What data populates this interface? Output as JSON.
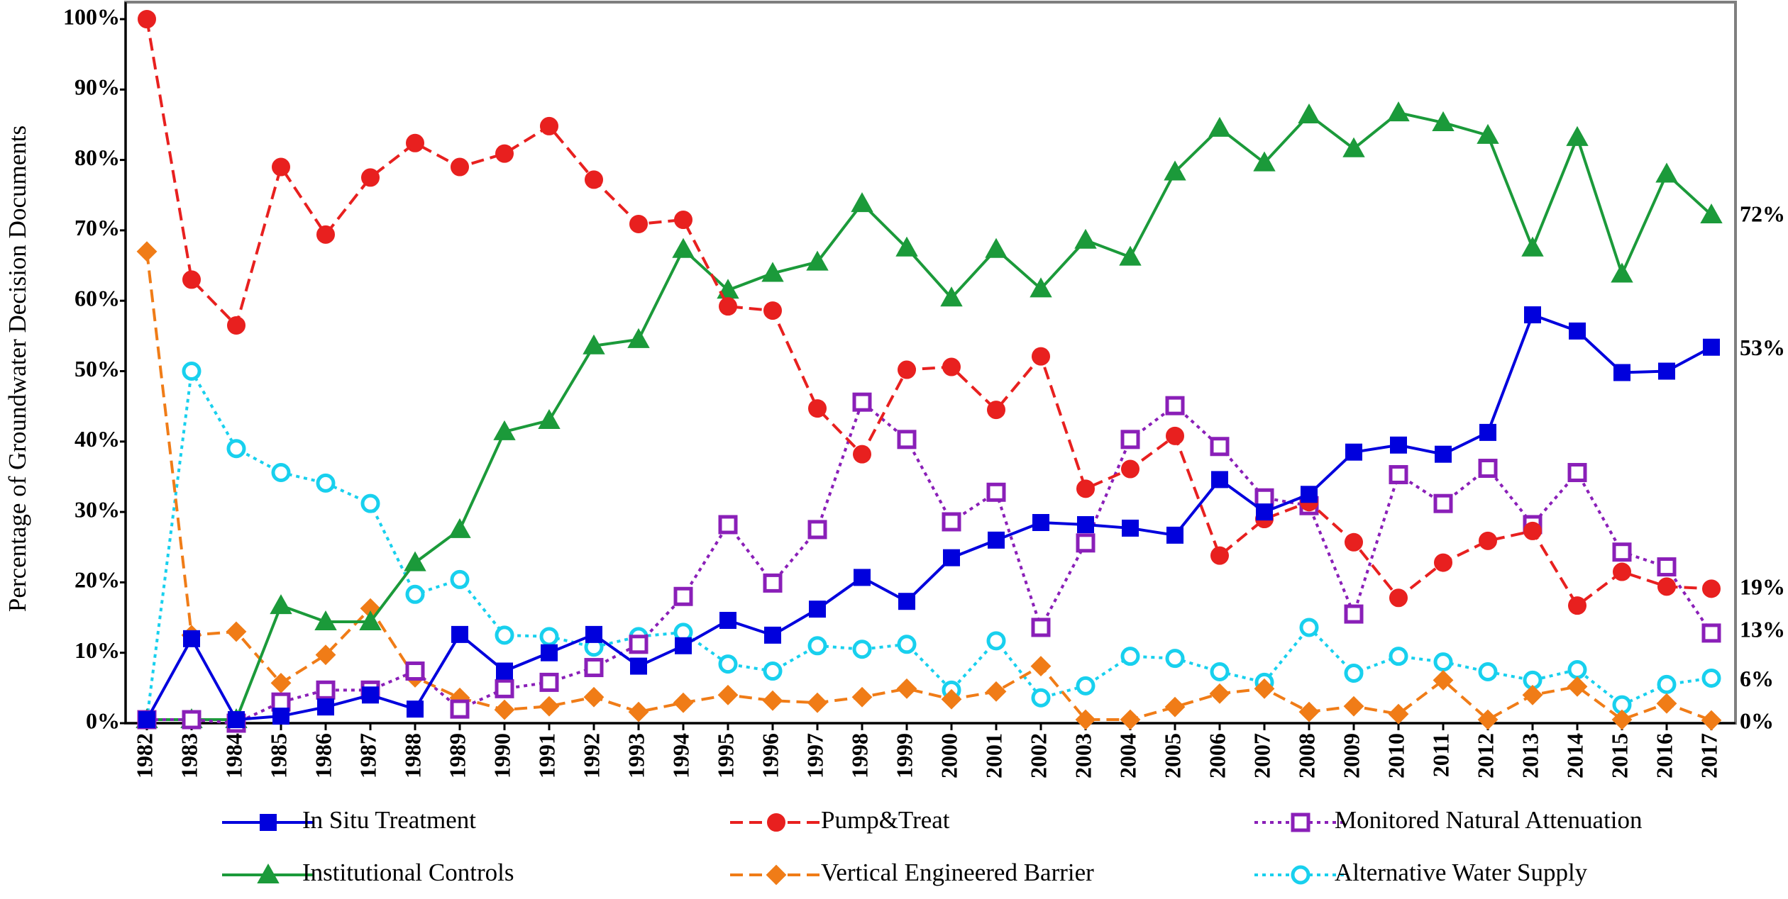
{
  "chart_data": {
    "type": "line",
    "y_label": "Percentage of Groundwater Decision Documents",
    "categories": [
      "1982",
      "1983",
      "1984",
      "1985",
      "1986",
      "1987",
      "1988",
      "1989",
      "1990",
      "1991",
      "1992",
      "1993",
      "1994",
      "1995",
      "1996",
      "1997",
      "1998",
      "1999",
      "2000",
      "2001",
      "2002",
      "2003",
      "2004",
      "2005",
      "2006",
      "2007",
      "2008",
      "2009",
      "2010",
      "2011",
      "2012",
      "2013",
      "2014",
      "2015",
      "2016",
      "2017"
    ],
    "ylim": [
      0,
      100
    ],
    "yticks": [
      {
        "value": 0,
        "label": "0%"
      },
      {
        "value": 10,
        "label": "10%"
      },
      {
        "value": 20,
        "label": "20%"
      },
      {
        "value": 30,
        "label": "30%"
      },
      {
        "value": 40,
        "label": "40%"
      },
      {
        "value": 50,
        "label": "50%"
      },
      {
        "value": 60,
        "label": "60%"
      },
      {
        "value": 70,
        "label": "70%"
      },
      {
        "value": 80,
        "label": "80%"
      },
      {
        "value": 90,
        "label": "90%"
      },
      {
        "value": 100,
        "label": "100%"
      }
    ],
    "grid": false,
    "end_labels": [
      {
        "value": 72,
        "label": "72%"
      },
      {
        "value": 53,
        "label": "53%"
      },
      {
        "value": 19,
        "label": "19%"
      },
      {
        "value": 13,
        "label": "13%"
      },
      {
        "value": 6,
        "label": "6%"
      },
      {
        "value": 0,
        "label": "0%"
      }
    ],
    "series": [
      {
        "name": "In Situ Treatment",
        "color": "#0000dd",
        "marker": "square",
        "filled": true,
        "line_style": "solid",
        "values": [
          0.5,
          12,
          0.5,
          1,
          2.3,
          4,
          2,
          12.6,
          7.4,
          10,
          12.6,
          8.1,
          11,
          14.6,
          12.5,
          16.2,
          20.7,
          17.3,
          23.5,
          26,
          28.5,
          28.2,
          27.7,
          26.7,
          34.6,
          30,
          32.5,
          38.5,
          39.5,
          38.2,
          41.3,
          58,
          55.7,
          49.8,
          50,
          53.4
        ]
      },
      {
        "name": "Pump&Treat",
        "color": "#e8201f",
        "marker": "circle",
        "filled": true,
        "line_style": "dashed",
        "values": [
          100,
          63,
          56.5,
          79,
          69.4,
          77.5,
          82.4,
          79,
          80.9,
          84.8,
          77.2,
          70.9,
          71.5,
          59.2,
          58.6,
          44.7,
          38.2,
          50.2,
          50.6,
          44.5,
          52.1,
          33.3,
          36.1,
          40.8,
          23.8,
          29,
          31.4,
          25.7,
          17.8,
          22.8,
          25.9,
          27.3,
          16.7,
          21.5,
          19.4,
          19.1
        ]
      },
      {
        "name": "Monitored Natural Attenuation",
        "color": "#8a1fb8",
        "marker": "square",
        "filled": false,
        "line_style": "dotted",
        "values": [
          0.5,
          0.5,
          0,
          3,
          4.7,
          4.7,
          7.4,
          2,
          4.9,
          5.8,
          7.9,
          11.2,
          18,
          28.2,
          19.9,
          27.5,
          45.6,
          40.3,
          28.6,
          32.8,
          13.6,
          25.6,
          40.3,
          45.1,
          39.3,
          32,
          30.9,
          15.5,
          35.3,
          31.2,
          36.2,
          28.2,
          35.6,
          24.3,
          22.2,
          12.8
        ]
      },
      {
        "name": "Institutional Controls",
        "color": "#1b9a3a",
        "marker": "triangle",
        "filled": true,
        "line_style": "solid",
        "values": [
          0.5,
          0.5,
          0.5,
          16.7,
          14.4,
          14.4,
          22.8,
          27.5,
          41.4,
          43,
          53.6,
          54.5,
          67.3,
          61.5,
          63.9,
          65.5,
          73.8,
          67.5,
          60.4,
          67.3,
          61.7,
          68.6,
          66.2,
          78.3,
          84.5,
          79.6,
          86.4,
          81.6,
          86.7,
          85.3,
          83.5,
          67.5,
          83.2,
          63.8,
          78,
          72.2
        ]
      },
      {
        "name": "Vertical Engineered Barrier",
        "color": "#f07c17",
        "marker": "diamond",
        "filled": true,
        "line_style": "dashed",
        "values": [
          67,
          12.5,
          13,
          5.7,
          9.7,
          16.3,
          6.5,
          3.6,
          1.9,
          2.4,
          3.7,
          1.6,
          2.9,
          4,
          3.2,
          2.9,
          3.7,
          4.9,
          3.4,
          4.5,
          8.1,
          0.5,
          0.5,
          2.3,
          4.2,
          4.9,
          1.6,
          2.4,
          1.3,
          6.1,
          0.5,
          4,
          5.2,
          0.5,
          2.8,
          0.4
        ]
      },
      {
        "name": "Alternative Water Supply",
        "color": "#18d0ee",
        "marker": "circle",
        "filled": false,
        "line_style": "dotted",
        "values": [
          0.5,
          50,
          39,
          35.6,
          34.1,
          31.2,
          18.3,
          20.4,
          12.5,
          12.3,
          10.8,
          12.3,
          12.9,
          8.4,
          7.4,
          11,
          10.5,
          11.2,
          4.7,
          11.7,
          3.6,
          5.3,
          9.5,
          9.2,
          7.3,
          5.8,
          13.6,
          7.1,
          9.5,
          8.7,
          7.3,
          6.1,
          7.6,
          2.6,
          5.5,
          6.4
        ]
      }
    ]
  }
}
